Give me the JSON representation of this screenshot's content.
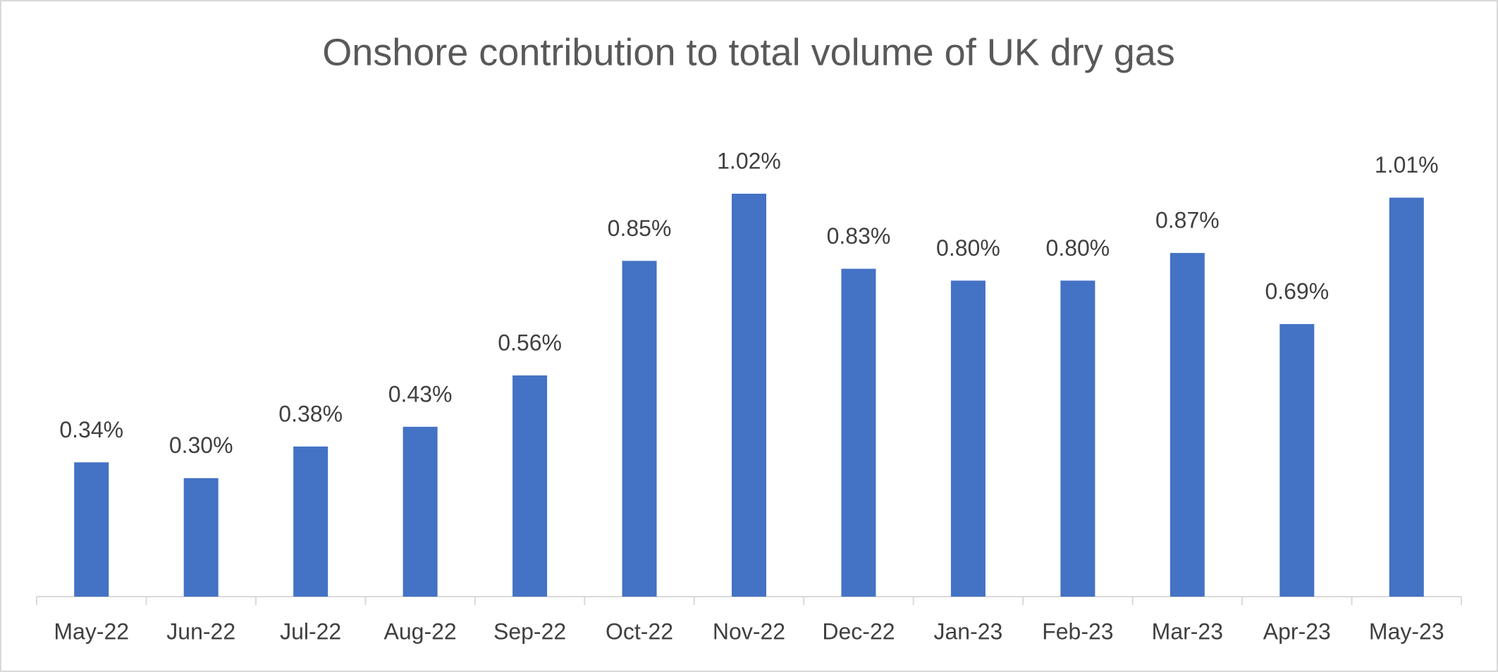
{
  "chart_data": {
    "type": "bar",
    "title": "Onshore contribution to total volume of UK dry gas",
    "categories": [
      "May-22",
      "Jun-22",
      "Jul-22",
      "Aug-22",
      "Sep-22",
      "Oct-22",
      "Nov-22",
      "Dec-22",
      "Jan-23",
      "Feb-23",
      "Mar-23",
      "Apr-23",
      "May-23"
    ],
    "values": [
      0.34,
      0.3,
      0.38,
      0.43,
      0.56,
      0.85,
      1.02,
      0.83,
      0.8,
      0.8,
      0.87,
      0.69,
      1.01
    ],
    "value_labels": [
      "0.34%",
      "0.30%",
      "0.38%",
      "0.43%",
      "0.56%",
      "0.85%",
      "1.02%",
      "0.83%",
      "0.80%",
      "0.80%",
      "0.87%",
      "0.69%",
      "1.01%"
    ],
    "color": "#4472c4"
  }
}
